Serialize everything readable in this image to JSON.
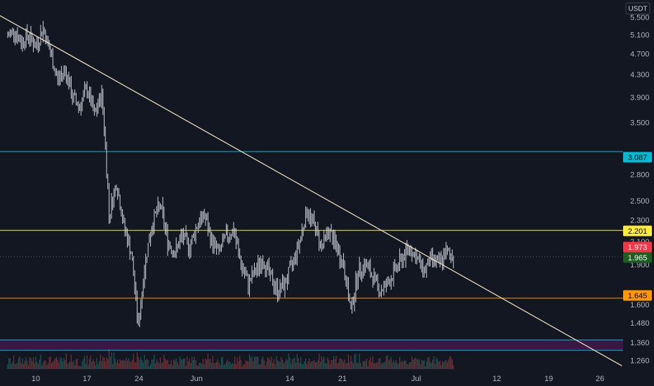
{
  "chart_data": {
    "type": "candlestick",
    "currency": "USDT",
    "y_scale": "log",
    "ylim": [
      1.22,
      5.85
    ],
    "y_ticks": [
      "5.500",
      "5.100",
      "4.700",
      "4.300",
      "3.900",
      "3.500",
      "2.800",
      "2.500",
      "2.300",
      "2.100",
      "1.900",
      "1.600",
      "1.480",
      "1.360",
      "1.260"
    ],
    "x_ticks": [
      "10",
      "17",
      "24",
      "Jun",
      "14",
      "21",
      "Jul",
      "12",
      "19",
      "26"
    ],
    "x_ticks_note": "date axis labels as printed",
    "price_tags": [
      {
        "label": "3.087",
        "value": 3.087,
        "color": "#00bcd4",
        "text_color": "#000000"
      },
      {
        "label": "2.201",
        "value": 2.201,
        "color": "#ffeb3b",
        "text_color": "#000000"
      },
      {
        "label": "1.973",
        "value": 1.973,
        "color": "#f23645",
        "text_color": "#ffffff"
      },
      {
        "label": "1.965",
        "value": 1.965,
        "color": "#1b5e20",
        "text_color": "#ffffff"
      },
      {
        "label": "1.645",
        "value": 1.645,
        "color": "#ff9800",
        "text_color": "#000000"
      }
    ],
    "horizontal_levels": [
      {
        "value": 3.087,
        "color": "#00bcd4"
      },
      {
        "value": 2.201,
        "color": "#ffeb3b"
      },
      {
        "value": 1.645,
        "color": "#ff9800"
      },
      {
        "value": 1.375,
        "color": "#00bcd4"
      },
      {
        "value": 1.315,
        "color": "#00bcd4"
      }
    ],
    "zone": {
      "from": 1.315,
      "to": 1.375,
      "color": "#4a1852"
    },
    "trendline": {
      "from_date": "2021-05-02",
      "from_value": 5.85,
      "to_date": "2021-07-29",
      "to_value": 1.23,
      "color": "#f5e6c4"
    },
    "candles_note": "approximate 4-hour price path, date and closing value in USDT",
    "price_path": [
      [
        "2021-05-06",
        5.05
      ],
      [
        "2021-05-07",
        5.2
      ],
      [
        "2021-05-08",
        4.95
      ],
      [
        "2021-05-09",
        5.1
      ],
      [
        "2021-05-10",
        4.85
      ],
      [
        "2021-05-11",
        5.25
      ],
      [
        "2021-05-12",
        4.7
      ],
      [
        "2021-05-13",
        4.2
      ],
      [
        "2021-05-14",
        4.4
      ],
      [
        "2021-05-15",
        3.9
      ],
      [
        "2021-05-16",
        3.75
      ],
      [
        "2021-05-17",
        4.05
      ],
      [
        "2021-05-18",
        3.6
      ],
      [
        "2021-05-19",
        3.95
      ],
      [
        "2021-05-20",
        2.35
      ],
      [
        "2021-05-21",
        2.7
      ],
      [
        "2021-05-22",
        2.25
      ],
      [
        "2021-05-23",
        2.0
      ],
      [
        "2021-05-24",
        1.45
      ],
      [
        "2021-05-25",
        1.95
      ],
      [
        "2021-05-26",
        2.3
      ],
      [
        "2021-05-27",
        2.45
      ],
      [
        "2021-05-28",
        2.1
      ],
      [
        "2021-05-29",
        2.0
      ],
      [
        "2021-05-30",
        2.15
      ],
      [
        "2021-05-31",
        2.05
      ],
      [
        "2021-06-01",
        2.25
      ],
      [
        "2021-06-02",
        2.35
      ],
      [
        "2021-06-03",
        2.1
      ],
      [
        "2021-06-04",
        2.0
      ],
      [
        "2021-06-05",
        2.15
      ],
      [
        "2021-06-06",
        2.2
      ],
      [
        "2021-06-07",
        1.9
      ],
      [
        "2021-06-08",
        1.75
      ],
      [
        "2021-06-09",
        1.85
      ],
      [
        "2021-06-10",
        1.95
      ],
      [
        "2021-06-11",
        1.8
      ],
      [
        "2021-06-12",
        1.7
      ],
      [
        "2021-06-13",
        1.75
      ],
      [
        "2021-06-14",
        1.9
      ],
      [
        "2021-06-15",
        2.1
      ],
      [
        "2021-06-16",
        2.4
      ],
      [
        "2021-06-17",
        2.25
      ],
      [
        "2021-06-18",
        2.05
      ],
      [
        "2021-06-19",
        2.2
      ],
      [
        "2021-06-20",
        2.05
      ],
      [
        "2021-06-21",
        1.9
      ],
      [
        "2021-06-22",
        1.55
      ],
      [
        "2021-06-23",
        1.85
      ],
      [
        "2021-06-24",
        1.9
      ],
      [
        "2021-06-25",
        1.8
      ],
      [
        "2021-06-26",
        1.7
      ],
      [
        "2021-06-27",
        1.75
      ],
      [
        "2021-06-28",
        1.85
      ],
      [
        "2021-06-29",
        1.95
      ],
      [
        "2021-06-30",
        2.05
      ],
      [
        "2021-07-01",
        1.95
      ],
      [
        "2021-07-02",
        1.85
      ],
      [
        "2021-07-03",
        1.95
      ],
      [
        "2021-07-04",
        1.9
      ],
      [
        "2021-07-05",
        2.0
      ],
      [
        "2021-07-06",
        1.965
      ]
    ]
  }
}
